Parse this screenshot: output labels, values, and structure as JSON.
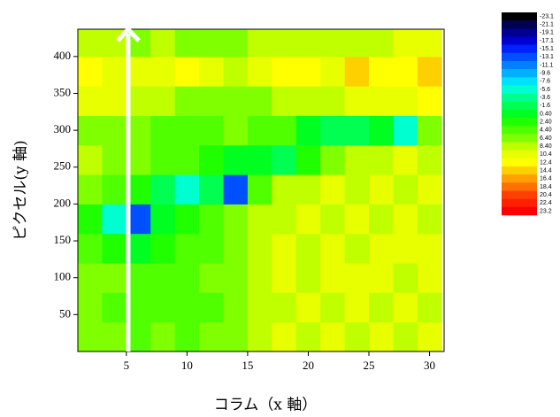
{
  "chart_data": {
    "type": "heatmap",
    "x_label": "コラム（x 軸）",
    "y_label": "ピクセル(y 軸)",
    "xlim": [
      1,
      31.2
    ],
    "ylim": [
      0,
      437
    ],
    "xticks": [
      5,
      10,
      15,
      20,
      25,
      30
    ],
    "yticks": [
      50,
      100,
      150,
      200,
      250,
      300,
      350,
      400
    ],
    "x": [
      2,
      4,
      6,
      8,
      10,
      12,
      14,
      16,
      18,
      20,
      22,
      24,
      26,
      28,
      30
    ],
    "y": [
      20,
      60,
      100,
      140,
      180,
      220,
      260,
      300,
      340,
      380,
      420
    ],
    "z": [
      [
        6,
        5,
        4,
        5,
        4,
        5,
        6,
        8,
        9,
        8,
        9,
        8,
        9,
        8,
        9
      ],
      [
        5,
        4,
        3,
        4,
        3,
        4,
        6,
        8,
        8,
        9,
        8,
        9,
        8,
        9,
        8
      ],
      [
        6,
        5,
        4,
        3,
        4,
        5,
        6,
        8,
        9,
        8,
        9,
        10,
        9,
        8,
        9
      ],
      [
        4,
        2,
        1,
        2,
        3,
        4,
        6,
        8,
        9,
        8,
        9,
        8,
        9,
        10,
        9
      ],
      [
        2,
        -6,
        -14,
        0,
        2,
        3,
        5,
        7,
        8,
        9,
        8,
        9,
        8,
        9,
        8
      ],
      [
        5,
        4,
        2,
        -1,
        -6,
        -1,
        -14,
        4,
        7,
        8,
        9,
        8,
        9,
        8,
        9
      ],
      [
        7,
        6,
        5,
        4,
        3,
        2,
        1,
        0,
        -1,
        2,
        5,
        7,
        8,
        9,
        8
      ],
      [
        6,
        5,
        5,
        4,
        4,
        4,
        5,
        4,
        3,
        1,
        -1,
        -1,
        1,
        -6,
        6
      ],
      [
        10,
        9,
        8,
        7,
        6,
        6,
        5,
        6,
        7,
        8,
        8,
        9,
        10,
        9,
        11
      ],
      [
        12,
        10,
        9,
        10,
        11,
        9,
        8,
        10,
        12,
        11,
        10,
        13,
        11,
        12,
        14
      ],
      [
        8,
        7,
        6,
        7,
        6,
        5,
        6,
        7,
        8,
        7,
        8,
        7,
        8,
        9,
        10
      ]
    ],
    "clim": [
      -23.1,
      23.2
    ],
    "colors": [
      "#000000",
      "#000050",
      "#000090",
      "#0000d0",
      "#0020ff",
      "#0050ff",
      "#0080ff",
      "#00b0ff",
      "#00e0ff",
      "#00ffd0",
      "#00ff90",
      "#00ff50",
      "#00ff20",
      "#20ff00",
      "#50ff00",
      "#80ff00",
      "#c0ff00",
      "#e8ff00",
      "#ffff00",
      "#ffd000",
      "#ffa000",
      "#ff7000",
      "#ff4000",
      "#ff2000",
      "#ff0000"
    ],
    "colorbar_ticks": [
      -23.1,
      -21.1,
      -19.1,
      -17.1,
      -15.1,
      -13.1,
      -11.1,
      -9.6,
      -7.6,
      -5.6,
      -3.6,
      -1.6,
      {
        "value": 0.4,
        "label": "0.40"
      },
      {
        "value": 2.4,
        "label": "2.40"
      },
      {
        "value": 4.4,
        "label": "4.40"
      },
      {
        "value": 6.4,
        "label": "6.40"
      },
      {
        "value": 8.4,
        "label": "8.40"
      },
      10.4,
      12.4,
      14.4,
      16.4,
      18.4,
      20.4,
      22.4,
      23.2
    ]
  }
}
